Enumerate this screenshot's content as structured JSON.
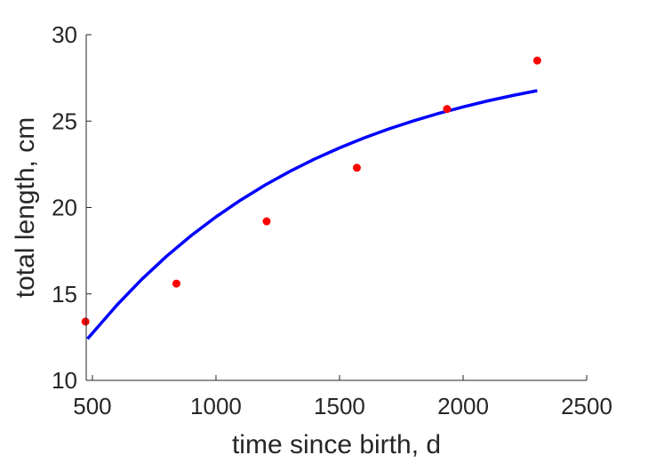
{
  "chart_data": {
    "type": "scatter",
    "xlabel": "time since birth, d",
    "ylabel": "total length, cm",
    "xlim": [
      475,
      2500
    ],
    "ylim": [
      10,
      30
    ],
    "xticks": [
      500,
      1000,
      1500,
      2000,
      2500
    ],
    "yticks": [
      10,
      15,
      20,
      25,
      30
    ],
    "grid": false,
    "box": false,
    "series": [
      {
        "kind": "points",
        "color": "#ff0000",
        "x": [
          472,
          840,
          1205,
          1570,
          1935,
          2300
        ],
        "y": [
          13.4,
          15.6,
          19.2,
          22.3,
          25.7,
          28.5
        ]
      },
      {
        "kind": "line",
        "color": "#0000ff",
        "x": [
          480,
          600,
          700,
          800,
          900,
          1000,
          1100,
          1200,
          1300,
          1400,
          1500,
          1600,
          1700,
          1800,
          1900,
          2000,
          2100,
          2200,
          2300
        ],
        "y": [
          12.4,
          14.37,
          15.85,
          17.18,
          18.38,
          19.46,
          20.43,
          21.31,
          22.1,
          22.81,
          23.45,
          24.03,
          24.55,
          25.02,
          25.44,
          25.82,
          26.17,
          26.48,
          26.76
        ]
      }
    ]
  }
}
